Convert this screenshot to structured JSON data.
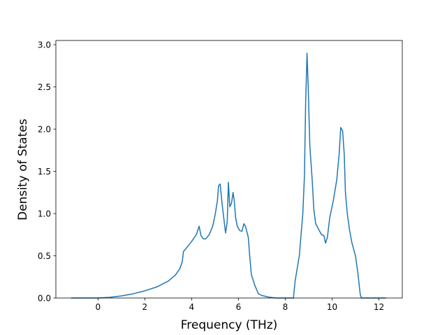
{
  "chart_data": {
    "type": "line",
    "title": "",
    "xlabel": "Frequency (THz)",
    "ylabel": "Density of States",
    "xlim": [
      -1.8,
      13.0
    ],
    "ylim": [
      0.0,
      3.05
    ],
    "x_ticks": [
      0,
      2,
      4,
      6,
      8,
      10,
      12
    ],
    "y_ticks": [
      0.0,
      0.5,
      1.0,
      1.5,
      2.0,
      2.5,
      3.0
    ],
    "x_tick_labels": [
      "0",
      "2",
      "4",
      "6",
      "8",
      "10",
      "12"
    ],
    "y_tick_labels": [
      "0.0",
      "0.5",
      "1.0",
      "1.5",
      "2.0",
      "2.5",
      "3.0"
    ],
    "grid": false,
    "series": [
      {
        "color": "#1f77b4",
        "points": [
          [
            -1.15,
            0.0
          ],
          [
            0.0,
            0.0
          ],
          [
            0.5,
            0.008
          ],
          [
            1.0,
            0.025
          ],
          [
            1.5,
            0.05
          ],
          [
            2.0,
            0.085
          ],
          [
            2.5,
            0.13
          ],
          [
            3.0,
            0.2
          ],
          [
            3.3,
            0.27
          ],
          [
            3.5,
            0.35
          ],
          [
            3.6,
            0.43
          ],
          [
            3.65,
            0.55
          ],
          [
            3.8,
            0.6
          ],
          [
            4.0,
            0.67
          ],
          [
            4.2,
            0.75
          ],
          [
            4.32,
            0.85
          ],
          [
            4.4,
            0.74
          ],
          [
            4.5,
            0.7
          ],
          [
            4.6,
            0.7
          ],
          [
            4.75,
            0.75
          ],
          [
            4.9,
            0.85
          ],
          [
            5.0,
            0.98
          ],
          [
            5.1,
            1.15
          ],
          [
            5.15,
            1.33
          ],
          [
            5.22,
            1.35
          ],
          [
            5.3,
            1.12
          ],
          [
            5.35,
            1.0
          ],
          [
            5.45,
            0.77
          ],
          [
            5.52,
            0.9
          ],
          [
            5.57,
            1.37
          ],
          [
            5.63,
            1.08
          ],
          [
            5.7,
            1.12
          ],
          [
            5.77,
            1.25
          ],
          [
            5.82,
            1.15
          ],
          [
            5.88,
            0.95
          ],
          [
            5.95,
            0.85
          ],
          [
            6.05,
            0.8
          ],
          [
            6.15,
            0.79
          ],
          [
            6.23,
            0.88
          ],
          [
            6.3,
            0.85
          ],
          [
            6.42,
            0.72
          ],
          [
            6.48,
            0.5
          ],
          [
            6.55,
            0.28
          ],
          [
            6.7,
            0.15
          ],
          [
            6.85,
            0.05
          ],
          [
            7.0,
            0.03
          ],
          [
            7.3,
            0.01
          ],
          [
            7.6,
            0.0
          ],
          [
            8.35,
            0.0
          ],
          [
            8.42,
            0.2
          ],
          [
            8.6,
            0.5
          ],
          [
            8.75,
            1.0
          ],
          [
            8.82,
            1.45
          ],
          [
            8.87,
            2.3
          ],
          [
            8.93,
            2.9
          ],
          [
            8.98,
            2.5
          ],
          [
            9.05,
            1.8
          ],
          [
            9.15,
            1.4
          ],
          [
            9.22,
            1.05
          ],
          [
            9.3,
            0.88
          ],
          [
            9.45,
            0.8
          ],
          [
            9.55,
            0.75
          ],
          [
            9.65,
            0.74
          ],
          [
            9.72,
            0.65
          ],
          [
            9.8,
            0.72
          ],
          [
            9.9,
            0.95
          ],
          [
            10.05,
            1.15
          ],
          [
            10.2,
            1.4
          ],
          [
            10.3,
            1.7
          ],
          [
            10.37,
            2.02
          ],
          [
            10.45,
            1.98
          ],
          [
            10.52,
            1.7
          ],
          [
            10.57,
            1.25
          ],
          [
            10.65,
            1.0
          ],
          [
            10.75,
            0.8
          ],
          [
            10.85,
            0.65
          ],
          [
            11.0,
            0.5
          ],
          [
            11.1,
            0.3
          ],
          [
            11.2,
            0.05
          ],
          [
            11.25,
            0.0
          ],
          [
            12.3,
            0.0
          ]
        ]
      }
    ]
  }
}
